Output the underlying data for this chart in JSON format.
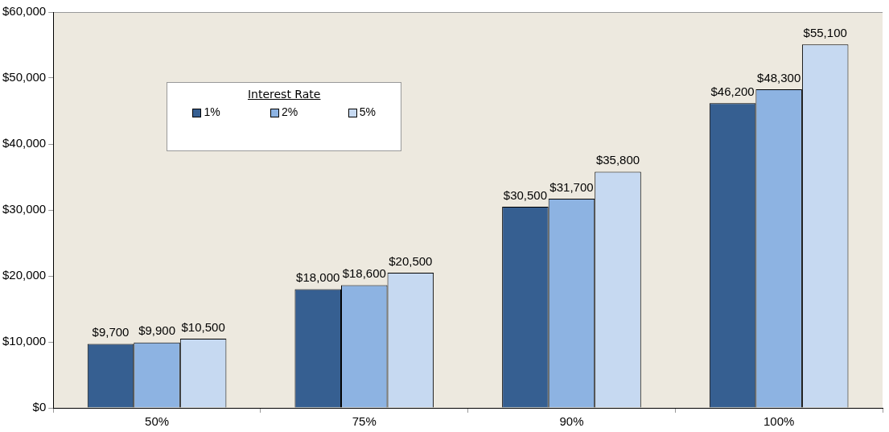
{
  "chart_data": {
    "type": "bar",
    "categories": [
      "50%",
      "75%",
      "90%",
      "100%"
    ],
    "legend_title": "Interest Rate",
    "legend": "top left",
    "grid": false,
    "ylim": [
      0,
      60000
    ],
    "yticks": [
      {
        "value": 0,
        "label": "$0"
      },
      {
        "value": 10000,
        "label": "$10,000"
      },
      {
        "value": 20000,
        "label": "$20,000"
      },
      {
        "value": 30000,
        "label": "$30,000"
      },
      {
        "value": 40000,
        "label": "$40,000"
      },
      {
        "value": 50000,
        "label": "$50,000"
      },
      {
        "value": 60000,
        "label": "$60,000"
      }
    ],
    "series": [
      {
        "name": "1%",
        "color": "#365f91",
        "values": [
          9700,
          18000,
          30500,
          46200
        ],
        "value_labels": [
          "$9,700",
          "$18,000",
          "$30,500",
          "$46,200"
        ]
      },
      {
        "name": "2%",
        "color": "#8db3e2",
        "values": [
          9900,
          18600,
          31700,
          48300
        ],
        "value_labels": [
          "$9,900",
          "$18,600",
          "$31,700",
          "$48,300"
        ]
      },
      {
        "name": "5%",
        "color": "#c6d9f1",
        "values": [
          10500,
          20500,
          35800,
          55100
        ],
        "value_labels": [
          "$10,500",
          "$20,500",
          "$35,800",
          "$55,100"
        ]
      }
    ]
  }
}
